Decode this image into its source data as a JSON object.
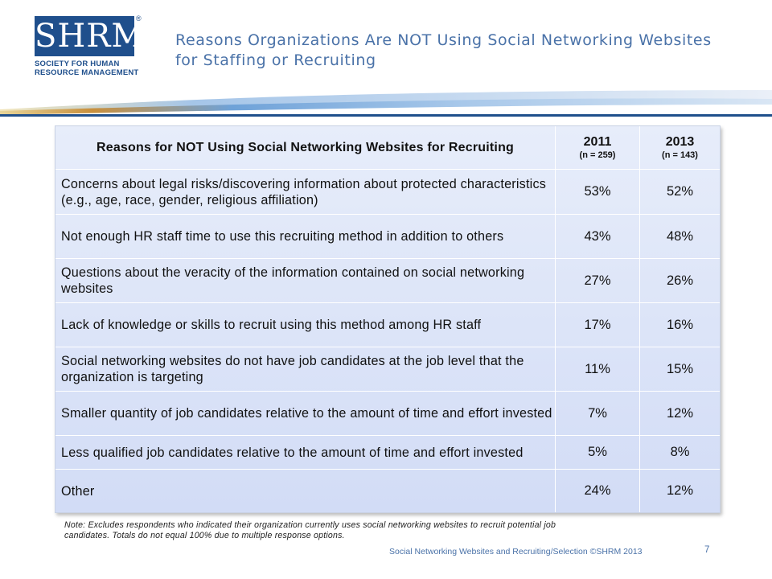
{
  "logo": {
    "letters": "SHRM",
    "registered": "®",
    "sub_lines": [
      "SOCIETY FOR HUMAN",
      "RESOURCE MANAGEMENT"
    ]
  },
  "slide": {
    "title_lines": [
      "Reasons Organizations Are NOT Using Social Networking Websites",
      "for Staffing or Recruiting"
    ]
  },
  "table": {
    "header": {
      "label": "Reasons for NOT Using Social Networking Websites for Recruiting",
      "col2011_year": "2011",
      "col2011_n": "(n = 259)",
      "col2013_year": "2013",
      "col2013_n": "(n = 143)"
    },
    "rows": [
      {
        "reason": "Concerns about legal risks/discovering information about protected characteristics (e.g., age, race, gender, religious affiliation)",
        "y2011": "53%",
        "y2013": "52%"
      },
      {
        "reason": "Not enough HR staff time to use this recruiting method in addition to others",
        "y2011": "43%",
        "y2013": "48%"
      },
      {
        "reason": "Questions about the veracity of the information contained on social networking websites",
        "y2011": "27%",
        "y2013": "26%"
      },
      {
        "reason": "Lack of knowledge or skills to recruit using this method among HR staff",
        "y2011": "17%",
        "y2013": "16%"
      },
      {
        "reason": "Social networking websites do not have job candidates at the job level that the organization is targeting",
        "y2011": "11%",
        "y2013": "15%"
      },
      {
        "reason": "Smaller quantity of job candidates relative to the amount of time and effort invested",
        "y2011": "7%",
        "y2013": "12%"
      },
      {
        "reason": "Less qualified job candidates relative to the amount of time and effort invested",
        "y2011": "5%",
        "y2013": "8%"
      },
      {
        "reason": "Other",
        "y2011": "24%",
        "y2013": "12%"
      }
    ]
  },
  "note_lines": [
    "Note:  Excludes respondents who indicated their organization currently uses social networking websites to recruit potential job",
    "candidates.  Totals do not equal 100% due to multiple response options."
  ],
  "footer": {
    "text": "Social Networking Websites and Recruiting/Selection ©SHRM 2013",
    "page": "7"
  },
  "colors": {
    "brand_blue": "#1f4f8c",
    "title_blue": "#4a72a8",
    "table_fill": "#d9e1f7"
  }
}
